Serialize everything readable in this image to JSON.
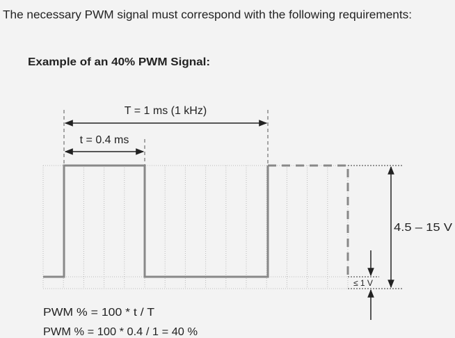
{
  "intro": "The necessary PWM signal must correspond with the following requirements:",
  "heading": "Example of an 40% PWM Signal:",
  "diagram": {
    "period_label": "T = 1 ms (1 kHz)",
    "pulse_label": "t = 0.4 ms",
    "voltage_label": "4.5 – 15 V",
    "low_label": "≤ 1 V"
  },
  "formulas": [
    "PWM % = 100 * t / T",
    "PWM % = 100 * 0.4 / 1 = 40 %"
  ]
}
